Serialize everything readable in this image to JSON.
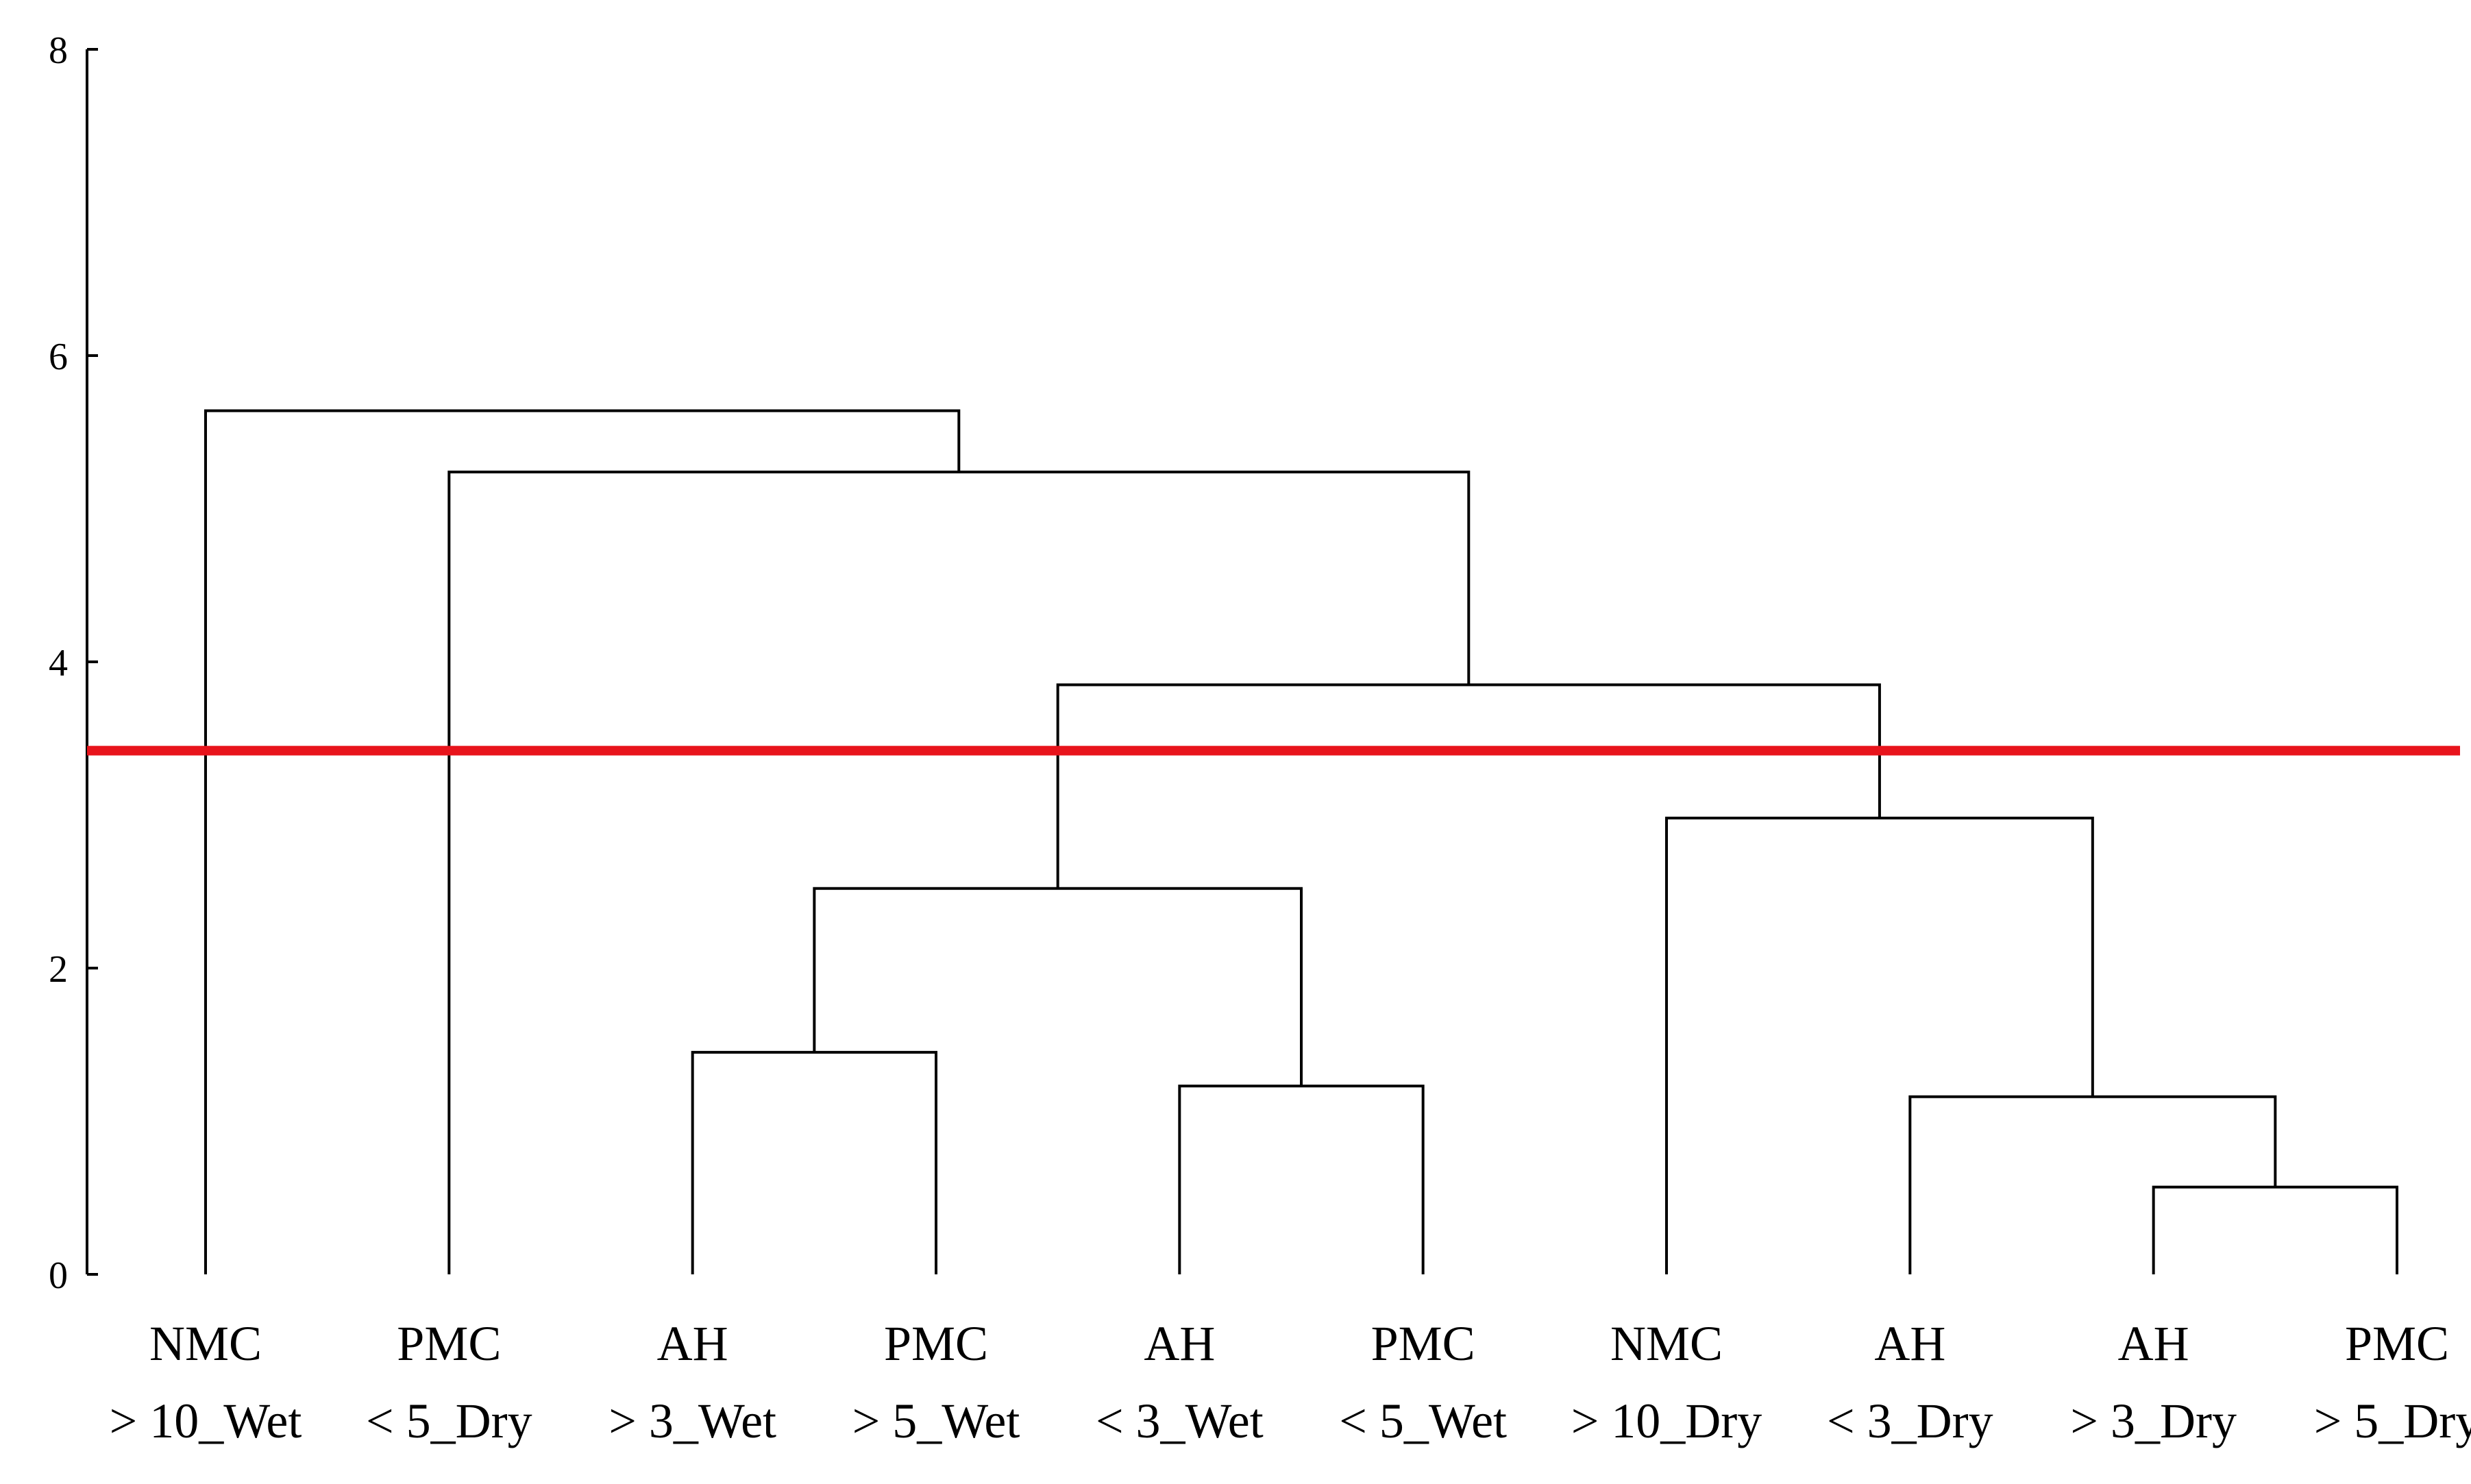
{
  "chart_data": {
    "type": "dendrogram",
    "title": "",
    "xlabel": "",
    "ylabel": "",
    "ylim": [
      0,
      8
    ],
    "y_ticks": [
      "0",
      "2",
      "4",
      "6",
      "8"
    ],
    "grid": false,
    "leaves": [
      {
        "line1": "NMC",
        "line2": "> 10_Wet"
      },
      {
        "line1": "PMC",
        "line2": "< 5_Dry"
      },
      {
        "line1": "AH",
        "line2": "> 3_Wet"
      },
      {
        "line1": "PMC",
        "line2": "> 5_Wet"
      },
      {
        "line1": "AH",
        "line2": "< 3_Wet"
      },
      {
        "line1": "PMC",
        "line2": "< 5_Wet"
      },
      {
        "line1": "NMC",
        "line2": "> 10_Dry"
      },
      {
        "line1": "AH",
        "line2": "< 3_Dry"
      },
      {
        "line1": "AH",
        "line2": "> 3_Dry"
      },
      {
        "line1": "PMC",
        "line2": "> 5_Dry"
      }
    ],
    "merges": [
      {
        "id": "m1",
        "left": 8,
        "right": 9,
        "height": 0.57
      },
      {
        "id": "m2",
        "left": 7,
        "right": "m1",
        "height": 1.16
      },
      {
        "id": "m3",
        "left": 4,
        "right": 5,
        "height": 1.23
      },
      {
        "id": "m4",
        "left": 2,
        "right": 3,
        "height": 1.45
      },
      {
        "id": "m5",
        "left": "m4",
        "right": "m3",
        "height": 2.52
      },
      {
        "id": "m6",
        "left": 6,
        "right": "m2",
        "height": 2.98
      },
      {
        "id": "m7",
        "left": "m5",
        "right": "m6",
        "height": 3.85
      },
      {
        "id": "m8",
        "left": 1,
        "right": "m7",
        "height": 5.24
      },
      {
        "id": "m9",
        "left": 0,
        "right": "m8",
        "height": 5.64
      }
    ],
    "cut_line": {
      "height": 3.42,
      "color": "#e8141c"
    },
    "link_color": "#000000"
  }
}
